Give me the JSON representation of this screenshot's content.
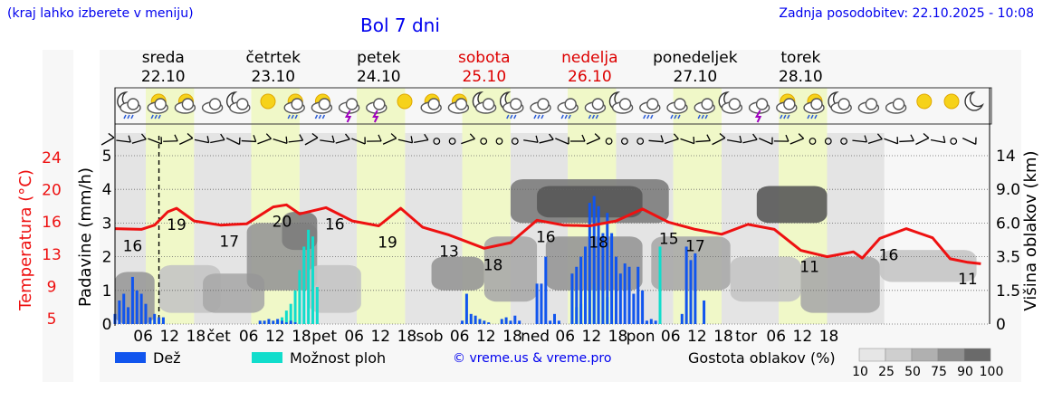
{
  "header": {
    "left_note": "(kraj lahko izberete v meniju)",
    "title": "Bol 7 dni",
    "updated": "Zadnja posodobitev: 22.10.2025 - 10:08"
  },
  "days": [
    {
      "name": "sreda",
      "date": "22.10",
      "weekend": false
    },
    {
      "name": "četrtek",
      "date": "23.10",
      "weekend": false
    },
    {
      "name": "petek",
      "date": "24.10",
      "weekend": false
    },
    {
      "name": "sobota",
      "date": "25.10",
      "weekend": true
    },
    {
      "name": "nedelja",
      "date": "26.10",
      "weekend": true
    },
    {
      "name": "ponedeljek",
      "date": "27.10",
      "weekend": false
    },
    {
      "name": "torek",
      "date": "28.10",
      "weekend": false
    }
  ],
  "colors": {
    "text_link": "#0000ee",
    "weekend": "#dd0000",
    "temperature": "#ee1111",
    "rain": "#1155ee",
    "showers": "#11ddcc",
    "day_band": "#f0f8c8",
    "night_band": "#e4e4e4"
  },
  "chart_data": {
    "type": "line",
    "left_axes": {
      "temperature_label": "Temperatura (°C)",
      "temperature_ticks": [
        "24",
        "20",
        "16",
        "13",
        "9",
        "5"
      ],
      "precip_label": "Padavine (mm/h)",
      "precip_ticks": [
        "5",
        "4",
        "3",
        "2",
        "1",
        "0"
      ],
      "precip_ylim": [
        0,
        5
      ]
    },
    "right_axis": {
      "label": "Višina oblakov (km)",
      "ticks": [
        "14",
        "9.0",
        "6.0",
        "3.5",
        "1.5",
        "0"
      ]
    },
    "x_tick_labels": [
      "06",
      "12",
      "18",
      "čet",
      "06",
      "12",
      "18",
      "pet",
      "06",
      "12",
      "18",
      "sob",
      "06",
      "12",
      "18",
      "ned",
      "06",
      "12",
      "18",
      "pon",
      "06",
      "12",
      "18",
      "tor",
      "06",
      "12",
      "18"
    ],
    "now_marker_hour": 10,
    "temperature_series": {
      "name": "Temperatura",
      "hours_from_start": [
        0,
        6,
        9,
        12,
        14,
        18,
        24,
        30,
        36,
        39,
        42,
        48,
        54,
        60,
        65,
        70,
        76,
        84,
        90,
        96,
        102,
        108,
        114,
        120,
        126,
        132,
        138,
        144,
        150,
        156,
        162,
        168,
        170,
        174,
        180,
        186,
        190,
        194,
        197
      ],
      "values": [
        16.2,
        16.1,
        16.7,
        18.6,
        19.1,
        17.3,
        16.7,
        16.9,
        19.3,
        19.6,
        18.3,
        19.2,
        17.3,
        16.6,
        19.1,
        16.4,
        15.3,
        13.4,
        14.2,
        17.4,
        16.7,
        16.6,
        17.3,
        19.0,
        17.1,
        16.1,
        15.4,
        16.8,
        16.1,
        13.1,
        12.2,
        12.9,
        12.0,
        14.8,
        16.2,
        14.9,
        11.9,
        11.4,
        11.2
      ]
    },
    "temperature_labels": [
      {
        "hour": 4,
        "text": "16"
      },
      {
        "hour": 14,
        "text": "19"
      },
      {
        "hour": 26,
        "text": "17"
      },
      {
        "hour": 38,
        "text": "20"
      },
      {
        "hour": 50,
        "text": "16"
      },
      {
        "hour": 62,
        "text": "19"
      },
      {
        "hour": 76,
        "text": "13"
      },
      {
        "hour": 86,
        "text": "18"
      },
      {
        "hour": 98,
        "text": "16"
      },
      {
        "hour": 110,
        "text": "18"
      },
      {
        "hour": 126,
        "text": "15"
      },
      {
        "hour": 132,
        "text": "17"
      },
      {
        "hour": 158,
        "text": "11"
      },
      {
        "hour": 176,
        "text": "16"
      },
      {
        "hour": 194,
        "text": "11"
      }
    ],
    "rain_series": {
      "name": "Dež",
      "hours_from_start": [
        0,
        1,
        2,
        3,
        4,
        5,
        6,
        7,
        8,
        9,
        10,
        11,
        33,
        34,
        35,
        36,
        37,
        38,
        39,
        40,
        41,
        79,
        80,
        81,
        82,
        83,
        84,
        85,
        88,
        89,
        90,
        91,
        92,
        96,
        97,
        98,
        99,
        100,
        101,
        104,
        105,
        106,
        107,
        108,
        109,
        110,
        111,
        112,
        113,
        114,
        115,
        116,
        117,
        118,
        119,
        120,
        121,
        122,
        123,
        129,
        130,
        131,
        132,
        134
      ],
      "values": [
        0.3,
        0.7,
        0.9,
        0.5,
        1.4,
        1.0,
        0.9,
        0.6,
        0.2,
        0.3,
        0.2,
        0.2,
        0.1,
        0.1,
        0.15,
        0.1,
        0.15,
        0.1,
        0.05,
        0.1,
        0.05,
        0.1,
        0.9,
        0.3,
        0.25,
        0.15,
        0.1,
        0.05,
        0.15,
        0.2,
        0.1,
        0.25,
        0.1,
        1.2,
        1.2,
        2.0,
        0.1,
        0.3,
        0.1,
        1.5,
        1.7,
        2.0,
        2.3,
        3.6,
        3.8,
        3.5,
        2.7,
        3.3,
        2.7,
        2.0,
        1.5,
        1.8,
        1.7,
        0.9,
        1.7,
        1.0,
        0.1,
        0.15,
        0.1,
        0.3,
        2.3,
        1.9,
        2.1,
        0.7
      ]
    },
    "shower_series": {
      "name": "Možnost ploh",
      "hours_from_start": [
        37,
        38,
        39,
        40,
        41,
        42,
        43,
        44,
        45,
        46,
        104,
        105,
        106,
        107,
        108,
        109,
        110,
        111,
        112,
        124
      ],
      "values": [
        0.1,
        0.2,
        0.4,
        0.6,
        1.0,
        1.6,
        2.3,
        2.8,
        2.6,
        1.1,
        1.1,
        0.5,
        0.6,
        0.8,
        1.0,
        1.2,
        1.1,
        1.0,
        0.8,
        2.3
      ]
    },
    "cloud_density_bands": [
      {
        "from_hour": 0,
        "to_hour": 9,
        "low_km": 0.0,
        "high_km": 2.6,
        "density": 30
      },
      {
        "from_hour": 10,
        "to_hour": 24,
        "low_km": 0.5,
        "high_km": 3.0,
        "density": 25
      },
      {
        "from_hour": 20,
        "to_hour": 34,
        "low_km": 0.5,
        "high_km": 2.5,
        "density": 50
      },
      {
        "from_hour": 30,
        "to_hour": 46,
        "low_km": 1.5,
        "high_km": 6.0,
        "density": 60
      },
      {
        "from_hour": 38,
        "to_hour": 46,
        "low_km": 4.0,
        "high_km": 7.0,
        "density": 75
      },
      {
        "from_hour": 44,
        "to_hour": 56,
        "low_km": 0.5,
        "high_km": 3.0,
        "density": 25
      },
      {
        "from_hour": 72,
        "to_hour": 84,
        "low_km": 1.5,
        "high_km": 3.5,
        "density": 60
      },
      {
        "from_hour": 84,
        "to_hour": 96,
        "low_km": 1.0,
        "high_km": 5.0,
        "density": 50
      },
      {
        "from_hour": 90,
        "to_hour": 126,
        "low_km": 6.0,
        "high_km": 10.5,
        "density": 75
      },
      {
        "from_hour": 96,
        "to_hour": 120,
        "low_km": 6.5,
        "high_km": 9.5,
        "density": 90
      },
      {
        "from_hour": 98,
        "to_hour": 120,
        "low_km": 1.5,
        "high_km": 5.0,
        "density": 60
      },
      {
        "from_hour": 122,
        "to_hour": 140,
        "low_km": 1.5,
        "high_km": 5.0,
        "density": 50
      },
      {
        "from_hour": 140,
        "to_hour": 156,
        "low_km": 1.0,
        "high_km": 3.5,
        "density": 25
      },
      {
        "from_hour": 146,
        "to_hour": 162,
        "low_km": 6.0,
        "high_km": 9.5,
        "density": 90
      },
      {
        "from_hour": 156,
        "to_hour": 174,
        "low_km": 0.5,
        "high_km": 3.5,
        "density": 50
      },
      {
        "from_hour": 174,
        "to_hour": 196,
        "low_km": 2.0,
        "high_km": 4.0,
        "density": 25
      }
    ]
  },
  "weather_icons": [
    "moon-cloud-rain",
    "sun-cloud-rain",
    "sun-cloud",
    "cloud",
    "moon-cloud",
    "sun",
    "sun-cloud-rain",
    "sun-cloud-rain",
    "cloud-lightning",
    "cloud-lightning",
    "sun",
    "sun-cloud",
    "sun-cloud",
    "moon-cloud",
    "moon-cloud-rain",
    "cloud-rain",
    "cloud-rain",
    "cloud-rain",
    "moon-cloud",
    "cloud-rain",
    "cloud-rain",
    "cloud-rain",
    "moon-cloud",
    "cloud-lightning",
    "sun-cloud-rain",
    "sun-cloud-rain",
    "moon-cloud",
    "cloud",
    "cloud",
    "sun",
    "sun",
    "moon"
  ],
  "wind_symbols": [
    "barb",
    "barb",
    "barb",
    "barb",
    "barb",
    "barb",
    "barb",
    "barb",
    "barb",
    "barb",
    "barb",
    "barb",
    "barb",
    "barb",
    "barb",
    "barb",
    "barb",
    "barb",
    "barb",
    "barb",
    "barb",
    "calm",
    "calm",
    "barb",
    "calm",
    "calm",
    "calm",
    "barb",
    "barb",
    "barb",
    "barb",
    "barb",
    "calm",
    "calm",
    "calm",
    "barb",
    "barb",
    "barb",
    "barb",
    "barb",
    "barb",
    "barb",
    "barb",
    "barb",
    "barb",
    "calm",
    "calm",
    "calm",
    "barb",
    "barb",
    "barb",
    "barb",
    "barb",
    "barb",
    "calm",
    "barb"
  ],
  "legend": {
    "rain": "Dež",
    "showers": "Možnost ploh",
    "copyright": "© vreme.us & vreme.pro",
    "cloud_density_title": "Gostota oblakov (%)",
    "cloud_density_steps": [
      "10",
      "25",
      "50",
      "75",
      "90",
      "100"
    ]
  }
}
